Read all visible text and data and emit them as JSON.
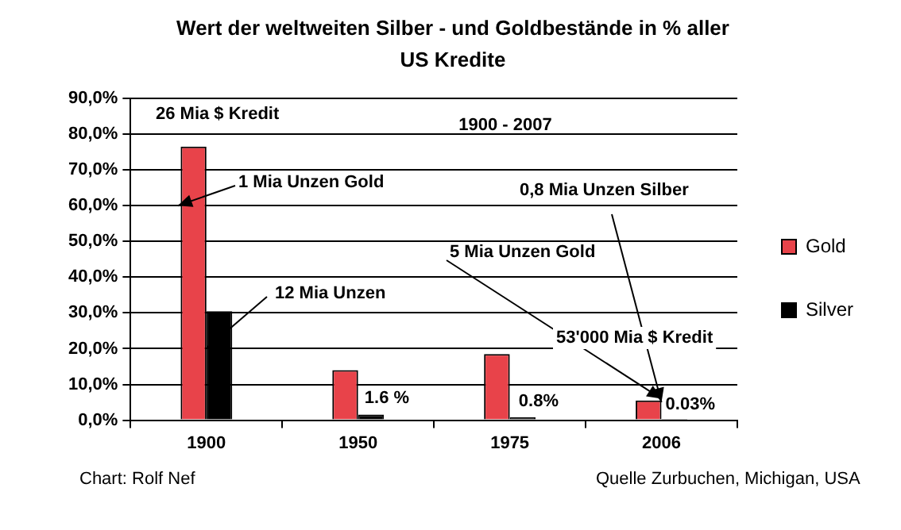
{
  "chart_data": {
    "type": "bar",
    "title": "Wert der weltweiten Silber - und Goldbestände in % aller US Kredite",
    "categories": [
      "1900",
      "1950",
      "1975",
      "2006"
    ],
    "series": [
      {
        "name": "Gold",
        "color": "#e8434a",
        "values": [
          76.5,
          14,
          18.5,
          5.5
        ]
      },
      {
        "name": "Silver",
        "color": "#000000",
        "values": [
          30.5,
          1.6,
          0.8,
          0.03
        ],
        "value_labels": [
          null,
          "1.6 %",
          "0.8%",
          "0.03%"
        ]
      }
    ],
    "ylim": [
      0,
      90
    ],
    "yticks": [
      {
        "value": 0,
        "label": "0,0%"
      },
      {
        "value": 10,
        "label": "10,0%"
      },
      {
        "value": 20,
        "label": "20,0%"
      },
      {
        "value": 30,
        "label": "30,0%"
      },
      {
        "value": 40,
        "label": "40,0%"
      },
      {
        "value": 50,
        "label": "50,0%"
      },
      {
        "value": 60,
        "label": "60,0%"
      },
      {
        "value": 70,
        "label": "70,0%"
      },
      {
        "value": 80,
        "label": "80,0%"
      },
      {
        "value": 90,
        "label": "90,0%"
      }
    ],
    "grid": "y",
    "legend": "right",
    "annotations": [
      "26 Mia $ Kredit",
      "1900 - 2007",
      {
        "text": "1 Mia Unzen Gold",
        "x": "1900",
        "y": 60
      },
      {
        "text": "12 Mia Unzen",
        "x": "1900",
        "y": 20
      },
      {
        "text": "5 Mia Unzen Gold",
        "x": "2006",
        "y": 6
      },
      {
        "text": "0,8 Mia Unzen Silber",
        "x": "2006",
        "y": 5
      },
      "53'000 Mia $ Kredit",
      "Chart: Rolf Nef",
      "Quelle Zurbuchen, Michigan, USA"
    ]
  }
}
